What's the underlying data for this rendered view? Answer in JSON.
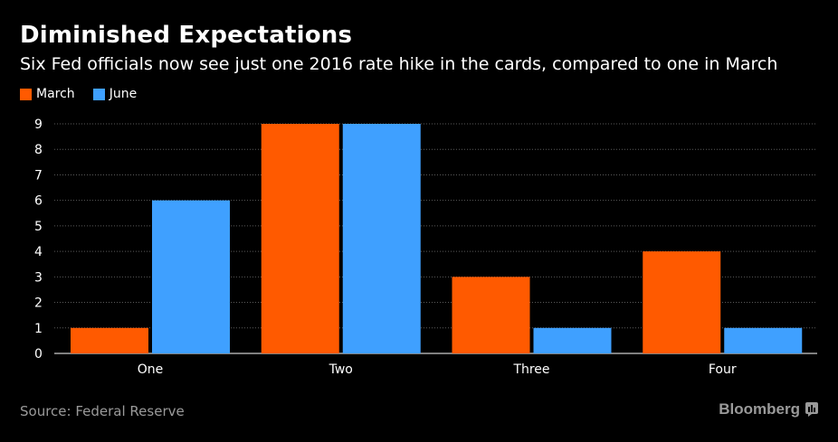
{
  "chart_data": {
    "type": "bar",
    "title": "Diminished Expectations",
    "subtitle": "Six Fed officials now see just one 2016 rate hike in the cards, compared to one in March",
    "categories": [
      "One",
      "Two",
      "Three",
      "Four"
    ],
    "series": [
      {
        "name": "March",
        "color": "#ff5a00",
        "values": [
          1,
          9,
          3,
          4
        ]
      },
      {
        "name": "June",
        "color": "#3fa0ff",
        "values": [
          6,
          9,
          1,
          1
        ]
      }
    ],
    "y_ticks": [
      0,
      1,
      2,
      3,
      4,
      5,
      6,
      7,
      8,
      9
    ],
    "ylim": [
      0,
      9
    ],
    "xlabel": "",
    "ylabel": "",
    "grid": true,
    "legend": "top-left"
  },
  "footer": {
    "source": "Source: Federal Reserve",
    "brand": "Bloomberg"
  },
  "icons": {
    "brand_icon": "bloomberg-chart-icon"
  }
}
